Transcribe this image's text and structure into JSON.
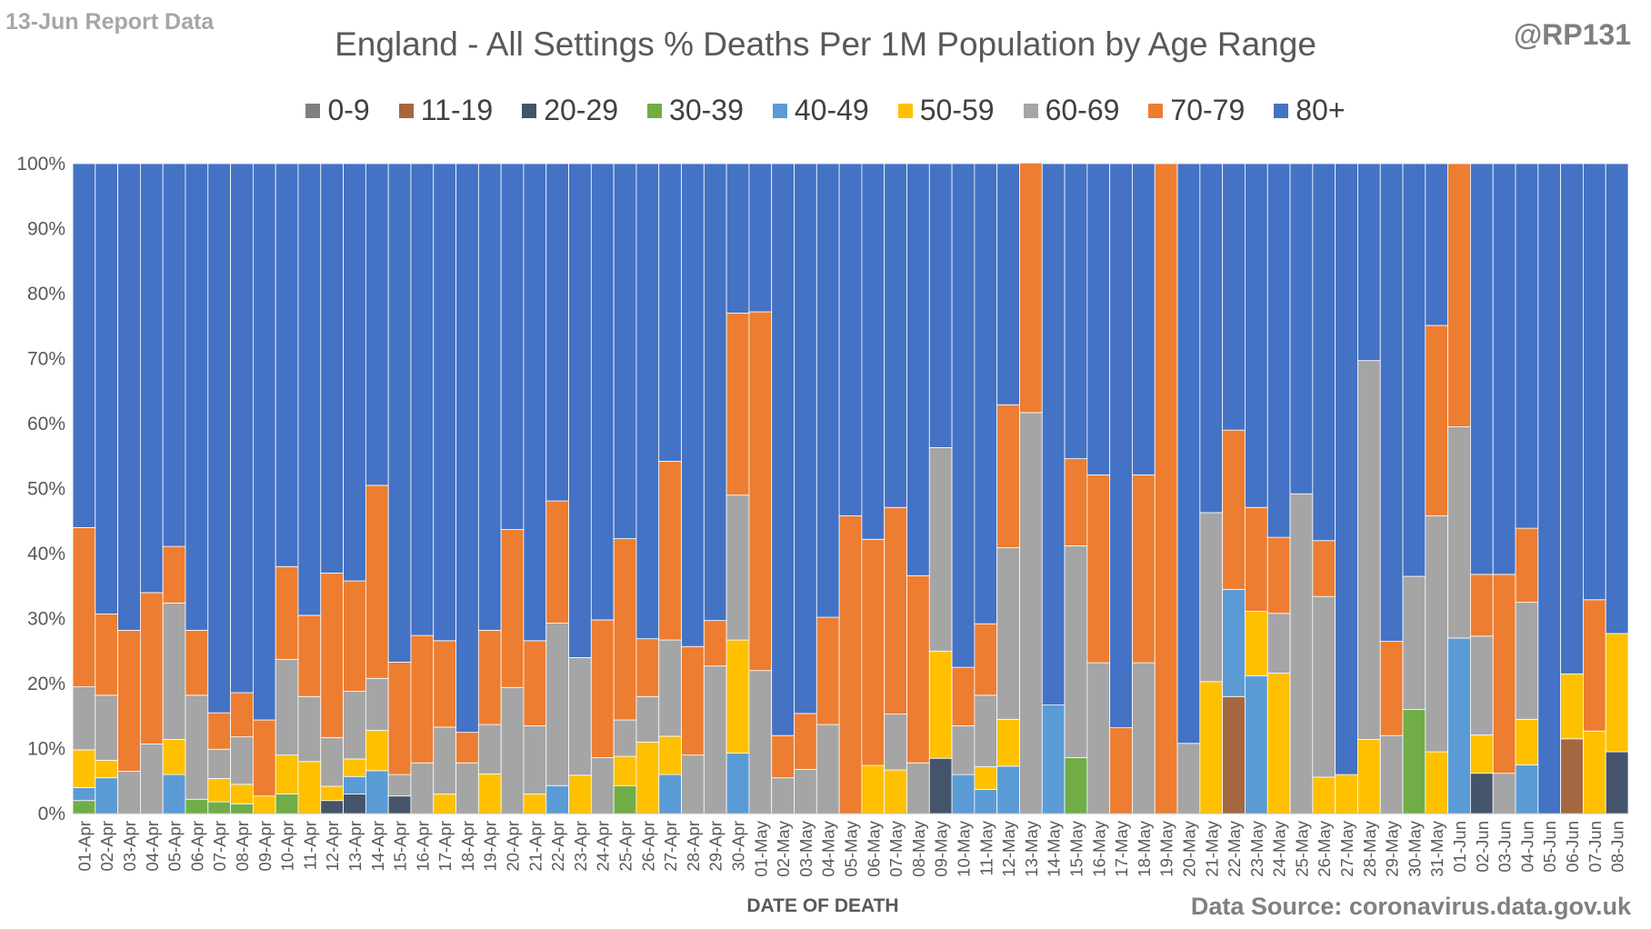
{
  "header": {
    "report_note": "13-Jun Report Data",
    "handle": "@RP131",
    "source": "Data Source: coronavirus.data.gov.uk"
  },
  "chart_data": {
    "type": "bar",
    "stacked": true,
    "title": "England - All Settings % Deaths Per 1M Population by Age Range",
    "xlabel": "DATE OF DEATH",
    "ylabel": "",
    "ylim": [
      0,
      100
    ],
    "y_ticks": [
      "0%",
      "10%",
      "20%",
      "30%",
      "40%",
      "50%",
      "60%",
      "70%",
      "80%",
      "90%",
      "100%"
    ],
    "grid": true,
    "legend_position": "top",
    "categories": [
      "01-Apr",
      "02-Apr",
      "03-Apr",
      "04-Apr",
      "05-Apr",
      "06-Apr",
      "07-Apr",
      "08-Apr",
      "09-Apr",
      "10-Apr",
      "11-Apr",
      "12-Apr",
      "13-Apr",
      "14-Apr",
      "15-Apr",
      "16-Apr",
      "17-Apr",
      "18-Apr",
      "19-Apr",
      "20-Apr",
      "21-Apr",
      "22-Apr",
      "23-Apr",
      "24-Apr",
      "25-Apr",
      "26-Apr",
      "27-Apr",
      "28-Apr",
      "29-Apr",
      "30-Apr",
      "01-May",
      "02-May",
      "03-May",
      "04-May",
      "05-May",
      "06-May",
      "07-May",
      "08-May",
      "09-May",
      "10-May",
      "11-May",
      "12-May",
      "13-May",
      "14-May",
      "15-May",
      "16-May",
      "17-May",
      "18-May",
      "19-May",
      "20-May",
      "21-May",
      "22-May",
      "23-May",
      "24-May",
      "25-May",
      "26-May",
      "27-May",
      "28-May",
      "29-May",
      "30-May",
      "31-May",
      "01-Jun",
      "02-Jun",
      "03-Jun",
      "04-Jun",
      "05-Jun",
      "06-Jun",
      "07-Jun",
      "08-Jun"
    ],
    "series": [
      {
        "name": "0-9",
        "color": "#808080",
        "values": [
          0,
          0,
          0,
          0,
          0,
          0,
          0,
          0,
          0,
          0,
          0,
          0,
          0,
          0,
          0,
          0,
          0,
          0,
          0,
          0,
          0,
          0,
          0,
          0,
          0,
          0,
          0,
          0,
          0,
          0,
          0,
          0,
          0,
          0,
          0,
          0,
          0,
          0,
          0,
          0,
          0,
          0,
          0,
          0,
          0,
          0,
          0,
          0,
          0,
          0,
          0,
          0,
          0,
          0,
          0,
          0,
          0,
          0,
          0,
          0,
          0,
          0,
          0,
          0,
          0,
          0,
          0,
          0,
          0
        ]
      },
      {
        "name": "11-19",
        "color": "#a5673f",
        "values": [
          0,
          0,
          0,
          0,
          0,
          0,
          0,
          0,
          0,
          0,
          0,
          0,
          0,
          0,
          0,
          0,
          0,
          0,
          0,
          0,
          0,
          0,
          0,
          0,
          0,
          0,
          0,
          0,
          0,
          0,
          0,
          0,
          0,
          0,
          0,
          0,
          0,
          0,
          0,
          0,
          0,
          0,
          0,
          0,
          0,
          0,
          0,
          0,
          0,
          0,
          0,
          18,
          0,
          0,
          0,
          0,
          0,
          0,
          0,
          0,
          0,
          0,
          0,
          0,
          0,
          0,
          11.5,
          0,
          0
        ]
      },
      {
        "name": "20-29",
        "color": "#44546a",
        "values": [
          0,
          0,
          0,
          0,
          0,
          0,
          0,
          0,
          0,
          0,
          0,
          2,
          3,
          0,
          2.7,
          0,
          0,
          0,
          0,
          0,
          0,
          0,
          0,
          0,
          0,
          0,
          0,
          0,
          0,
          0,
          0,
          0,
          0,
          0,
          0,
          0,
          0,
          0,
          8.5,
          0,
          0,
          0,
          0,
          0,
          0,
          0,
          0,
          0,
          0,
          0,
          0,
          0,
          0,
          0,
          0,
          0,
          0,
          0,
          0,
          0,
          0,
          0,
          6.2,
          0,
          0,
          0,
          0,
          0,
          9.5
        ]
      },
      {
        "name": "30-39",
        "color": "#70ad47",
        "values": [
          2,
          0,
          0,
          0,
          0,
          2.2,
          1.8,
          1.5,
          0,
          3,
          0,
          0,
          0,
          0,
          0,
          0,
          0,
          0,
          0,
          0,
          0,
          0,
          0,
          0,
          4.3,
          0,
          0,
          0,
          0,
          0,
          0,
          0,
          0,
          0,
          0,
          0,
          0,
          0,
          0,
          0,
          0,
          0,
          0,
          0,
          8.6,
          0,
          0,
          0,
          0,
          0,
          0,
          0,
          0,
          0,
          0,
          0,
          0,
          0,
          0,
          16,
          0,
          0,
          0,
          0,
          0,
          0,
          0,
          0,
          0
        ]
      },
      {
        "name": "40-49",
        "color": "#5b9bd5",
        "values": [
          2,
          5.5,
          0,
          0,
          6,
          0,
          0,
          0,
          0,
          0,
          0,
          0,
          2.7,
          6.6,
          0,
          0,
          0,
          0,
          0,
          0,
          0,
          4.3,
          0,
          0,
          0,
          0,
          6,
          0,
          0,
          9.3,
          0,
          0,
          0,
          0,
          0,
          0,
          0,
          0,
          0,
          6,
          3.7,
          7.3,
          0,
          16.7,
          0,
          0,
          0,
          0,
          0,
          0,
          0,
          16.5,
          21.2,
          0,
          0,
          0,
          0,
          0,
          0,
          0,
          0,
          27,
          0,
          0,
          7.5,
          0,
          0,
          0,
          0
        ]
      },
      {
        "name": "50-59",
        "color": "#ffc000",
        "values": [
          5.8,
          2.7,
          0,
          0,
          5.4,
          0,
          3.6,
          3,
          2.7,
          6,
          8,
          2.2,
          2.7,
          6.2,
          0,
          0,
          3,
          0,
          6.1,
          0,
          3,
          0,
          5.9,
          0,
          4.5,
          11,
          5.9,
          0,
          0,
          17.4,
          0,
          0,
          0,
          0,
          0,
          7.4,
          6.7,
          0,
          16.5,
          0,
          3.5,
          7.2,
          0,
          0,
          0,
          0,
          0,
          0,
          0,
          0,
          20.3,
          0,
          9.9,
          21.6,
          0,
          5.6,
          6,
          11.4,
          0,
          0,
          9.5,
          0,
          5.9,
          0,
          7,
          0,
          10,
          12.7,
          18.2
        ]
      },
      {
        "name": "60-69",
        "color": "#a5a5a5",
        "values": [
          9.7,
          10,
          6.5,
          10.7,
          21,
          16,
          4.5,
          7.3,
          0,
          14.7,
          10,
          7.5,
          10.4,
          8,
          3.3,
          7.8,
          10.3,
          7.8,
          7.6,
          19.4,
          10.5,
          25,
          18.1,
          8.6,
          5.6,
          7,
          14.8,
          9,
          22.7,
          22.3,
          22,
          5.5,
          6.8,
          13.7,
          0,
          0,
          8.6,
          7.8,
          31.3,
          7.5,
          11,
          26.4,
          61.7,
          0,
          32.6,
          23.2,
          0,
          23.2,
          0,
          10.8,
          26,
          0,
          0,
          9.2,
          49.2,
          27.8,
          0,
          58.3,
          12,
          20.5,
          36.3,
          32.5,
          15.2,
          6.2,
          18,
          0,
          0,
          0,
          0
        ]
      },
      {
        "name": "70-79",
        "color": "#ed7d31",
        "values": [
          24.5,
          12.5,
          21.7,
          23.3,
          8.7,
          10,
          5.6,
          6.8,
          11.7,
          14.3,
          12.5,
          25.3,
          17,
          29.7,
          17.3,
          19.6,
          13.3,
          4.7,
          14.5,
          24.3,
          13.1,
          18.8,
          0,
          21.2,
          27.9,
          8.9,
          27.5,
          16.7,
          7,
          28,
          55.2,
          6.5,
          8.6,
          16.5,
          45.8,
          34.8,
          31.8,
          28.8,
          0,
          9,
          11,
          22,
          38.4,
          0,
          13.4,
          28.9,
          13.2,
          28.9,
          100,
          0,
          0,
          24.5,
          16,
          11.7,
          0,
          8.6,
          0,
          0,
          14.5,
          0,
          29.3,
          40.5,
          9.5,
          30.6,
          11.4,
          0,
          0,
          20.2,
          0
        ]
      }
    ]
  }
}
